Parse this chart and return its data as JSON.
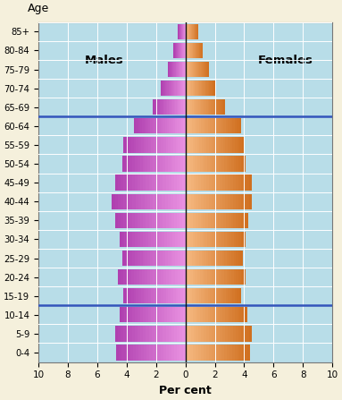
{
  "age_groups": [
    "85+",
    "80-84",
    "75-79",
    "70-74",
    "65-69",
    "60-64",
    "55-59",
    "50-54",
    "45-49",
    "40-44",
    "35-39",
    "30-34",
    "25-29",
    "20-24",
    "15-19",
    "10-14",
    "5-9",
    "0-4"
  ],
  "males": [
    0.5,
    0.8,
    1.2,
    1.7,
    2.2,
    3.5,
    4.2,
    4.3,
    4.8,
    5.0,
    4.8,
    4.5,
    4.3,
    4.6,
    4.2,
    4.5,
    4.8,
    4.7
  ],
  "females": [
    0.9,
    1.2,
    1.6,
    2.0,
    2.7,
    3.8,
    4.0,
    4.1,
    4.5,
    4.5,
    4.3,
    4.1,
    3.9,
    4.1,
    3.8,
    4.2,
    4.5,
    4.4
  ],
  "background_color": "#b8dde8",
  "figure_background": "#f5f0dc",
  "hline_color": "#3355bb",
  "center_line_color": "#111111",
  "xlabel": "Per cent",
  "xlim": 10,
  "age_label": "Age",
  "males_label": "Males",
  "females_label": "Females",
  "bar_height": 0.82
}
